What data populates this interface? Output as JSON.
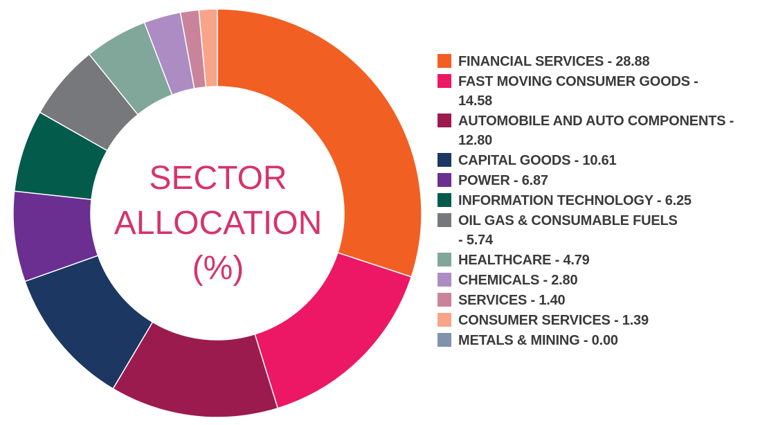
{
  "chart_data": {
    "type": "pie",
    "title_lines": [
      "SECTOR",
      "ALLOCATION",
      "(%)"
    ],
    "legend_position": "right",
    "slices": [
      {
        "label_lines": [
          "FINANCIAL SERVICES - 28.88"
        ],
        "value": 28.88,
        "color": "#f15f22"
      },
      {
        "label_lines": [
          "FAST MOVING CONSUMER GOODS -",
          "14.58"
        ],
        "value": 14.58,
        "color": "#ec1765"
      },
      {
        "label_lines": [
          "AUTOMOBILE AND AUTO COMPONENTS -",
          "12.80"
        ],
        "value": 12.8,
        "color": "#9b1b4f"
      },
      {
        "label_lines": [
          "CAPITAL GOODS - 10.61"
        ],
        "value": 10.61,
        "color": "#1b3762"
      },
      {
        "label_lines": [
          "POWER - 6.87"
        ],
        "value": 6.87,
        "color": "#6b2f91"
      },
      {
        "label_lines": [
          "INFORMATION TECHNOLOGY - 6.25"
        ],
        "value": 6.25,
        "color": "#025b4b"
      },
      {
        "label_lines": [
          "OIL GAS & CONSUMABLE FUELS",
          "- 5.74"
        ],
        "value": 5.74,
        "color": "#77787b"
      },
      {
        "label_lines": [
          "HEALTHCARE - 4.79"
        ],
        "value": 4.79,
        "color": "#80a79a"
      },
      {
        "label_lines": [
          "CHEMICALS - 2.80"
        ],
        "value": 2.8,
        "color": "#ad8cc4"
      },
      {
        "label_lines": [
          "SERVICES - 1.40"
        ],
        "value": 1.4,
        "color": "#c9849b"
      },
      {
        "label_lines": [
          "CONSUMER SERVICES - 1.39"
        ],
        "value": 1.39,
        "color": "#f8a48a"
      },
      {
        "label_lines": [
          "METALS & MINING - 0.00"
        ],
        "value": 0.0,
        "color": "#8193ab"
      }
    ]
  }
}
